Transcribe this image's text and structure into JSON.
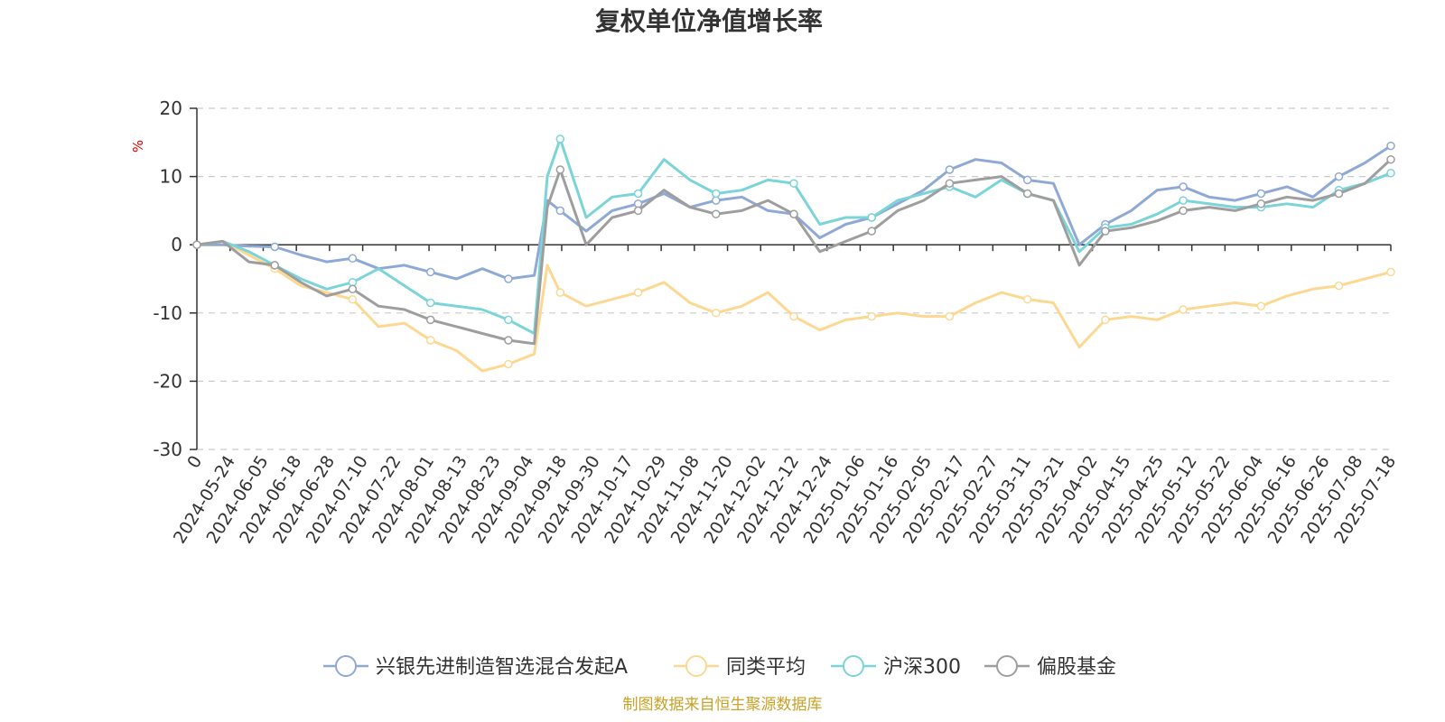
{
  "chart_data": {
    "type": "line",
    "title": "复权单位净值增长率",
    "ylabel": "%",
    "ylim": [
      -30,
      20
    ],
    "yticks": [
      20,
      10,
      0,
      -10,
      -20,
      -30
    ],
    "grid": true,
    "legend_position": "bottom",
    "x_ticks": [
      "0",
      "2024-05-24",
      "2024-06-05",
      "2024-06-18",
      "2024-06-28",
      "2024-07-10",
      "2024-07-22",
      "2024-08-01",
      "2024-08-13",
      "2024-08-23",
      "2024-09-04",
      "2024-09-18",
      "2024-09-30",
      "2024-10-17",
      "2024-10-29",
      "2024-11-08",
      "2024-11-20",
      "2024-12-02",
      "2024-12-12",
      "2024-12-24",
      "2025-01-06",
      "2025-01-16",
      "2025-02-05",
      "2025-02-17",
      "2025-02-27",
      "2025-03-11",
      "2025-03-21",
      "2025-04-02",
      "2025-04-15",
      "2025-04-25",
      "2025-05-12",
      "2025-05-22",
      "2025-06-04",
      "2025-06-16",
      "2025-06-26",
      "2025-07-08",
      "2025-07-18"
    ],
    "series": [
      {
        "name": "兴银先进制造智选混合发起A",
        "color": "#8fa9d6",
        "points": [
          [
            0,
            0
          ],
          [
            1,
            0
          ],
          [
            2,
            -0.2
          ],
          [
            3,
            -0.3
          ],
          [
            4,
            -1.5
          ],
          [
            5,
            -2.5
          ],
          [
            6,
            -2.0
          ],
          [
            7,
            -3.5
          ],
          [
            8,
            -3.0
          ],
          [
            9,
            -4.0
          ],
          [
            10,
            -5.0
          ],
          [
            11,
            -3.5
          ],
          [
            12,
            -5.0
          ],
          [
            13,
            -4.5
          ],
          [
            13.5,
            6.5
          ],
          [
            14,
            5.0
          ],
          [
            15,
            2.0
          ],
          [
            16,
            5.0
          ],
          [
            17,
            6.0
          ],
          [
            18,
            7.5
          ],
          [
            19,
            5.5
          ],
          [
            20,
            6.5
          ],
          [
            21,
            7.0
          ],
          [
            22,
            5.0
          ],
          [
            23,
            4.5
          ],
          [
            24,
            1.0
          ],
          [
            25,
            3.0
          ],
          [
            26,
            4.0
          ],
          [
            27,
            6.0
          ],
          [
            28,
            8.0
          ],
          [
            29,
            11.0
          ],
          [
            30,
            12.5
          ],
          [
            31,
            12.0
          ],
          [
            32,
            9.5
          ],
          [
            33,
            9.0
          ],
          [
            34,
            0.0
          ],
          [
            35,
            3.0
          ],
          [
            36,
            5.0
          ],
          [
            37,
            8.0
          ],
          [
            38,
            8.5
          ],
          [
            39,
            7.0
          ],
          [
            40,
            6.5
          ],
          [
            41,
            7.5
          ],
          [
            42,
            8.5
          ],
          [
            43,
            7.0
          ],
          [
            44,
            10.0
          ],
          [
            45,
            12.0
          ],
          [
            46,
            14.5
          ]
        ]
      },
      {
        "name": "同类平均",
        "color": "#fcd892",
        "points": [
          [
            0,
            0
          ],
          [
            1,
            0.5
          ],
          [
            2,
            -1.5
          ],
          [
            3,
            -3.5
          ],
          [
            4,
            -6.0
          ],
          [
            5,
            -7.0
          ],
          [
            6,
            -8.0
          ],
          [
            7,
            -12.0
          ],
          [
            8,
            -11.5
          ],
          [
            9,
            -14.0
          ],
          [
            10,
            -15.5
          ],
          [
            11,
            -18.5
          ],
          [
            12,
            -17.5
          ],
          [
            13,
            -16.0
          ],
          [
            13.5,
            -3.0
          ],
          [
            14,
            -7.0
          ],
          [
            15,
            -9.0
          ],
          [
            16,
            -8.0
          ],
          [
            17,
            -7.0
          ],
          [
            18,
            -5.5
          ],
          [
            19,
            -8.5
          ],
          [
            20,
            -10.0
          ],
          [
            21,
            -9.0
          ],
          [
            22,
            -7.0
          ],
          [
            23,
            -10.5
          ],
          [
            24,
            -12.5
          ],
          [
            25,
            -11.0
          ],
          [
            26,
            -10.5
          ],
          [
            27,
            -10.0
          ],
          [
            28,
            -10.5
          ],
          [
            29,
            -10.5
          ],
          [
            30,
            -8.5
          ],
          [
            31,
            -7.0
          ],
          [
            32,
            -8.0
          ],
          [
            33,
            -8.5
          ],
          [
            34,
            -15.0
          ],
          [
            35,
            -11.0
          ],
          [
            36,
            -10.5
          ],
          [
            37,
            -11.0
          ],
          [
            38,
            -9.5
          ],
          [
            39,
            -9.0
          ],
          [
            40,
            -8.5
          ],
          [
            41,
            -9.0
          ],
          [
            42,
            -7.5
          ],
          [
            43,
            -6.5
          ],
          [
            44,
            -6.0
          ],
          [
            45,
            -5.0
          ],
          [
            46,
            -4.0
          ]
        ]
      },
      {
        "name": "沪深300",
        "color": "#7bd4d8",
        "points": [
          [
            0,
            0
          ],
          [
            1,
            0.5
          ],
          [
            2,
            -1.0
          ],
          [
            3,
            -3.0
          ],
          [
            4,
            -5.0
          ],
          [
            5,
            -6.5
          ],
          [
            6,
            -5.5
          ],
          [
            7,
            -3.5
          ],
          [
            8,
            -6.0
          ],
          [
            9,
            -8.5
          ],
          [
            10,
            -9.0
          ],
          [
            11,
            -9.5
          ],
          [
            12,
            -11.0
          ],
          [
            13,
            -13.0
          ],
          [
            13.5,
            10.0
          ],
          [
            14,
            15.5
          ],
          [
            15,
            4.0
          ],
          [
            16,
            7.0
          ],
          [
            17,
            7.5
          ],
          [
            18,
            12.5
          ],
          [
            19,
            9.5
          ],
          [
            20,
            7.5
          ],
          [
            21,
            8.0
          ],
          [
            22,
            9.5
          ],
          [
            23,
            9.0
          ],
          [
            24,
            3.0
          ],
          [
            25,
            4.0
          ],
          [
            26,
            4.0
          ],
          [
            27,
            6.5
          ],
          [
            28,
            7.5
          ],
          [
            29,
            8.5
          ],
          [
            30,
            7.0
          ],
          [
            31,
            9.5
          ],
          [
            32,
            7.5
          ],
          [
            33,
            6.5
          ],
          [
            34,
            -1.0
          ],
          [
            35,
            2.5
          ],
          [
            36,
            3.0
          ],
          [
            37,
            4.5
          ],
          [
            38,
            6.5
          ],
          [
            39,
            6.0
          ],
          [
            40,
            5.5
          ],
          [
            41,
            5.5
          ],
          [
            42,
            6.0
          ],
          [
            43,
            5.5
          ],
          [
            44,
            8.0
          ],
          [
            45,
            9.0
          ],
          [
            46,
            10.5
          ]
        ]
      },
      {
        "name": "偏股基金",
        "color": "#9e9e9e",
        "points": [
          [
            0,
            0
          ],
          [
            1,
            0.5
          ],
          [
            2,
            -2.5
          ],
          [
            3,
            -3.0
          ],
          [
            4,
            -5.5
          ],
          [
            5,
            -7.5
          ],
          [
            6,
            -6.5
          ],
          [
            7,
            -9.0
          ],
          [
            8,
            -9.5
          ],
          [
            9,
            -11.0
          ],
          [
            10,
            -12.0
          ],
          [
            11,
            -13.0
          ],
          [
            12,
            -14.0
          ],
          [
            13,
            -14.5
          ],
          [
            13.5,
            5.5
          ],
          [
            14,
            11.0
          ],
          [
            15,
            0.0
          ],
          [
            16,
            4.0
          ],
          [
            17,
            5.0
          ],
          [
            18,
            8.0
          ],
          [
            19,
            5.5
          ],
          [
            20,
            4.5
          ],
          [
            21,
            5.0
          ],
          [
            22,
            6.5
          ],
          [
            23,
            4.5
          ],
          [
            24,
            -1.0
          ],
          [
            25,
            0.5
          ],
          [
            26,
            2.0
          ],
          [
            27,
            5.0
          ],
          [
            28,
            6.5
          ],
          [
            29,
            9.0
          ],
          [
            30,
            9.5
          ],
          [
            31,
            10.0
          ],
          [
            32,
            7.5
          ],
          [
            33,
            6.5
          ],
          [
            34,
            -3.0
          ],
          [
            35,
            2.0
          ],
          [
            36,
            2.5
          ],
          [
            37,
            3.5
          ],
          [
            38,
            5.0
          ],
          [
            39,
            5.5
          ],
          [
            40,
            5.0
          ],
          [
            41,
            6.0
          ],
          [
            42,
            7.0
          ],
          [
            43,
            6.5
          ],
          [
            44,
            7.5
          ],
          [
            45,
            9.0
          ],
          [
            46,
            12.5
          ]
        ]
      }
    ]
  },
  "source_note": "制图数据来自恒生聚源数据库"
}
